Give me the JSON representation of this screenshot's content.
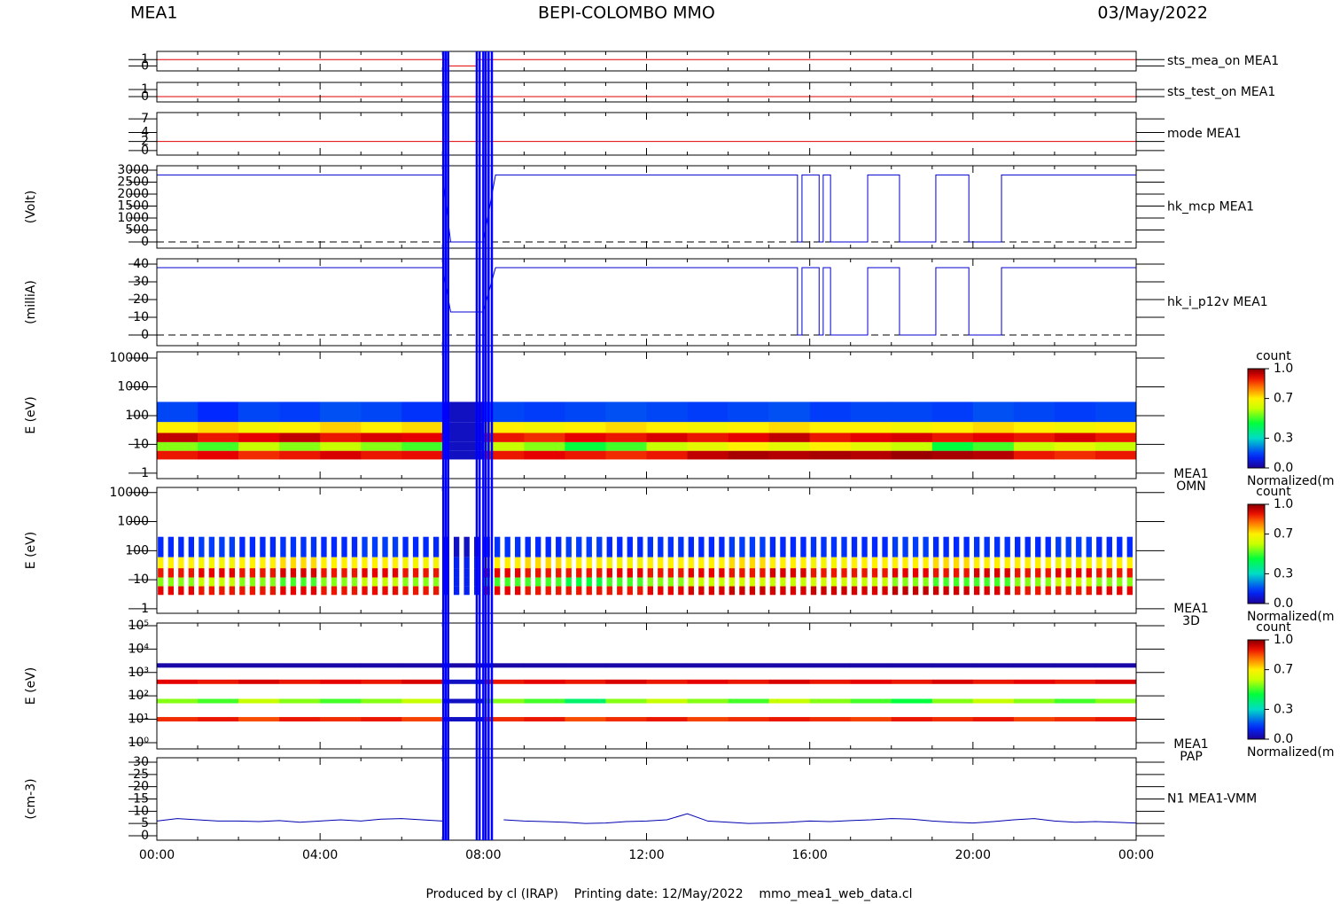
{
  "header": {
    "left": "MEA1",
    "center": "BEPI-COLOMBO MMO",
    "right": "03/May/2022"
  },
  "footer": "Produced by cl (IRAP)    Printing date: 12/May/2022    mmo_mea1_web_data.cl",
  "event_markers": {
    "color": "#0000ff",
    "x": [
      7.02,
      7.08,
      7.14,
      7.84,
      7.91,
      8.0,
      8.06,
      8.13,
      8.21
    ]
  },
  "chart_data": [
    {
      "type": "line",
      "ylim": [
        -0.8,
        2.3
      ],
      "yticks": [
        0,
        1
      ],
      "series": [
        {
          "name": "sts_mea_on MEA1",
          "color": "#e00000",
          "x": [
            0,
            7.14,
            7.14,
            7.84,
            7.84,
            24
          ],
          "values": [
            1,
            1,
            0,
            0,
            1,
            1
          ]
        }
      ]
    },
    {
      "type": "line",
      "ylim": [
        -0.75,
        2.0
      ],
      "yticks": [
        0,
        1
      ],
      "series": [
        {
          "name": "sts_test_on MEA1",
          "color": "#e00000",
          "x": [
            0,
            24
          ],
          "values": [
            0,
            0
          ]
        }
      ]
    },
    {
      "type": "line",
      "ylim": [
        -1,
        8.4
      ],
      "yticks": [
        0,
        2,
        4,
        7
      ],
      "series": [
        {
          "name": "mode MEA1",
          "color": "#e00000",
          "x": [
            0,
            24
          ],
          "values": [
            2,
            2
          ]
        }
      ]
    },
    {
      "type": "line",
      "ylabel": "(Volt)",
      "ylim": [
        -260,
        3185
      ],
      "yticks": [
        0,
        500,
        1000,
        1500,
        2000,
        2500,
        3000
      ],
      "reference_line": 0,
      "series": [
        {
          "name": "hk_mcp MEA1",
          "color": "#0000d0",
          "x": [
            0,
            7.0,
            7.2,
            8.0,
            8.3,
            15.7,
            15.7,
            15.81,
            15.81,
            16.23,
            16.23,
            16.33,
            16.33,
            16.51,
            16.51,
            17.42,
            17.42,
            18.2,
            18.2,
            19.09,
            19.09,
            19.9,
            19.9,
            20.7,
            20.7,
            24
          ],
          "values": [
            2800,
            2800,
            0,
            0,
            2800,
            2800,
            0,
            0,
            2800,
            2800,
            0,
            0,
            2800,
            2800,
            0,
            0,
            2800,
            2800,
            0,
            0,
            2800,
            2800,
            0,
            0,
            2800,
            2800
          ]
        }
      ]
    },
    {
      "type": "line",
      "ylabel": "(milliA)",
      "ylim": [
        -6,
        43
      ],
      "yticks": [
        0,
        10,
        20,
        30,
        40
      ],
      "reference_line": 0,
      "series": [
        {
          "name": "hk_i_p12v MEA1",
          "color": "#0000d0",
          "x": [
            0,
            7.0,
            7.2,
            8.0,
            8.3,
            15.7,
            15.7,
            15.81,
            15.81,
            16.23,
            16.23,
            16.33,
            16.33,
            16.51,
            16.51,
            17.42,
            17.42,
            18.2,
            18.2,
            19.09,
            19.09,
            19.9,
            19.9,
            20.7,
            20.7,
            24
          ],
          "values": [
            38,
            38,
            13,
            13,
            38,
            38,
            0,
            0,
            38,
            38,
            0,
            0,
            38,
            38,
            0,
            0,
            38,
            38,
            0,
            0,
            38,
            38,
            0,
            0,
            38,
            38
          ]
        }
      ]
    },
    {
      "type": "spectrogram",
      "ylabel": "E (eV)",
      "log": true,
      "ylim": [
        0.65,
        16400
      ],
      "yticks": [
        1,
        10,
        100,
        1000,
        10000
      ],
      "instrument": "MEA1",
      "product": "OMN",
      "colormap": "rainbow",
      "bins": [
        0,
        1,
        2,
        3,
        4,
        5,
        6,
        7,
        8,
        9,
        10,
        11,
        12,
        13,
        14,
        15,
        16,
        17,
        18,
        19,
        20,
        21,
        22,
        23,
        24
      ],
      "band_edges": [
        3,
        6,
        12,
        25,
        60,
        300
      ],
      "values": [
        [
          0.9,
          0.92,
          0.88,
          0.9,
          0.93,
          0.9,
          0.91,
          0.05,
          0.9,
          0.92,
          0.9,
          0.88,
          0.9,
          0.95,
          0.97,
          0.96,
          0.97,
          0.96,
          0.98,
          0.97,
          0.96,
          0.9,
          0.88,
          0.9
        ],
        [
          0.55,
          0.5,
          0.6,
          0.55,
          0.6,
          0.55,
          0.5,
          0.05,
          0.6,
          0.55,
          0.45,
          0.5,
          0.6,
          0.65,
          0.7,
          0.65,
          0.7,
          0.65,
          0.6,
          0.45,
          0.5,
          0.6,
          0.65,
          0.6
        ],
        [
          0.95,
          0.9,
          0.92,
          0.95,
          0.9,
          0.93,
          0.92,
          0.05,
          0.9,
          0.88,
          0.92,
          0.9,
          0.93,
          0.9,
          0.92,
          0.95,
          0.9,
          0.92,
          0.93,
          0.9,
          0.92,
          0.9,
          0.93,
          0.9
        ],
        [
          0.7,
          0.72,
          0.68,
          0.7,
          0.73,
          0.7,
          0.72,
          0.05,
          0.7,
          0.68,
          0.7,
          0.72,
          0.7,
          0.68,
          0.7,
          0.72,
          0.7,
          0.7,
          0.68,
          0.7,
          0.72,
          0.7,
          0.68,
          0.7
        ],
        [
          0.15,
          0.12,
          0.15,
          0.14,
          0.16,
          0.15,
          0.13,
          0.05,
          0.15,
          0.14,
          0.15,
          0.16,
          0.15,
          0.14,
          0.15,
          0.16,
          0.14,
          0.15,
          0.15,
          0.14,
          0.16,
          0.15,
          0.14,
          0.15
        ]
      ],
      "colorbar": {
        "title": "count",
        "label": "Normalized(m",
        "lim": [
          0,
          1
        ],
        "ticks": [
          {
            "value": 0,
            "label": "0.0"
          },
          {
            "value": 0.3,
            "label": "0.3"
          },
          {
            "value": 0.7,
            "label": "0.7"
          },
          {
            "value": 1,
            "label": "1.0"
          }
        ]
      }
    },
    {
      "type": "spectrogram",
      "striped": true,
      "ylabel": "E (eV)",
      "log": true,
      "ylim": [
        0.7,
        15000
      ],
      "yticks": [
        1,
        10,
        100,
        1000,
        10000
      ],
      "instrument": "MEA1",
      "product": "3D",
      "colormap": "rainbow",
      "bins": [
        0,
        1,
        2,
        3,
        4,
        5,
        6,
        7,
        8,
        9,
        10,
        11,
        12,
        13,
        14,
        15,
        16,
        17,
        18,
        19,
        20,
        21,
        22,
        23,
        24
      ],
      "band_edges": [
        3,
        6,
        12,
        25,
        60,
        300
      ],
      "values": [
        [
          0.92,
          0.9,
          0.9,
          0.92,
          0.9,
          0.91,
          0.9,
          0.1,
          0.92,
          0.9,
          0.9,
          0.9,
          0.92,
          0.93,
          0.94,
          0.93,
          0.94,
          0.93,
          0.95,
          0.94,
          0.93,
          0.9,
          0.9,
          0.92
        ],
        [
          0.55,
          0.6,
          0.55,
          0.5,
          0.55,
          0.6,
          0.55,
          0.1,
          0.5,
          0.5,
          0.45,
          0.5,
          0.55,
          0.6,
          0.62,
          0.6,
          0.62,
          0.6,
          0.55,
          0.5,
          0.5,
          0.55,
          0.6,
          0.55
        ],
        [
          0.9,
          0.92,
          0.9,
          0.93,
          0.9,
          0.92,
          0.9,
          0.1,
          0.92,
          0.9,
          0.9,
          0.92,
          0.9,
          0.92,
          0.9,
          0.93,
          0.9,
          0.9,
          0.92,
          0.9,
          0.93,
          0.9,
          0.92,
          0.9
        ],
        [
          0.7,
          0.68,
          0.7,
          0.72,
          0.7,
          0.7,
          0.68,
          0.1,
          0.7,
          0.72,
          0.7,
          0.68,
          0.7,
          0.7,
          0.72,
          0.7,
          0.68,
          0.7,
          0.7,
          0.72,
          0.7,
          0.7,
          0.68,
          0.7
        ],
        [
          0.12,
          0.14,
          0.12,
          0.13,
          0.12,
          0.14,
          0.12,
          0.05,
          0.13,
          0.12,
          0.14,
          0.12,
          0.13,
          0.12,
          0.14,
          0.12,
          0.13,
          0.12,
          0.14,
          0.12,
          0.13,
          0.12,
          0.14,
          0.12
        ]
      ],
      "colorbar": {
        "title": "count",
        "label": "Normalized(m",
        "lim": [
          0,
          1
        ],
        "ticks": [
          {
            "value": 0,
            "label": "0.0"
          },
          {
            "value": 0.3,
            "label": "0.3"
          },
          {
            "value": 0.7,
            "label": "0.7"
          },
          {
            "value": 1,
            "label": "1.0"
          }
        ]
      }
    },
    {
      "type": "stripes",
      "ylabel": "E (eV)",
      "log": true,
      "ylim": [
        0.54,
        130000
      ],
      "yticks": [
        {
          "value": 1,
          "label": "10⁰"
        },
        {
          "value": 10,
          "label": "10¹"
        },
        {
          "value": 100,
          "label": "10²"
        },
        {
          "value": 1000,
          "label": "10³"
        },
        {
          "value": 10000,
          "label": "10⁴"
        },
        {
          "value": 100000,
          "label": "10⁵"
        }
      ],
      "instrument": "MEA1",
      "product": "PAP",
      "colormap": "rainbow",
      "bins": [
        0,
        1,
        2,
        3,
        4,
        5,
        6,
        7,
        8,
        9,
        10,
        11,
        12,
        13,
        14,
        15,
        16,
        17,
        18,
        19,
        20,
        21,
        22,
        23,
        24
      ],
      "levels": [
        10,
        60,
        400,
        2000
      ],
      "values": [
        [
          0.88,
          0.9,
          0.85,
          0.9,
          0.88,
          0.9,
          0.86,
          0.05,
          0.88,
          0.9,
          0.85,
          0.88,
          0.9,
          0.86,
          0.88,
          0.9,
          0.88,
          0.86,
          0.9,
          0.88,
          0.9,
          0.86,
          0.88,
          0.9
        ],
        [
          0.55,
          0.5,
          0.6,
          0.55,
          0.5,
          0.55,
          0.6,
          0.05,
          0.55,
          0.5,
          0.4,
          0.55,
          0.6,
          0.55,
          0.5,
          0.6,
          0.55,
          0.5,
          0.45,
          0.55,
          0.6,
          0.55,
          0.5,
          0.55
        ],
        [
          0.92,
          0.9,
          0.93,
          0.9,
          0.92,
          0.9,
          0.93,
          0.05,
          0.9,
          0.92,
          0.9,
          0.93,
          0.9,
          0.92,
          0.9,
          0.93,
          0.9,
          0.92,
          0.9,
          0.93,
          0.9,
          0.92,
          0.9,
          0.93
        ],
        [
          0.02,
          0.02,
          0.02,
          0.02,
          0.02,
          0.02,
          0.02,
          0.02,
          0.02,
          0.02,
          0.02,
          0.02,
          0.02,
          0.02,
          0.02,
          0.02,
          0.02,
          0.02,
          0.02,
          0.02,
          0.02,
          0.02,
          0.02,
          0.02
        ]
      ],
      "colorbar": {
        "title": "count",
        "label": "Normalized(m",
        "lim": [
          0,
          1
        ],
        "ticks": [
          {
            "value": 0,
            "label": "0.0"
          },
          {
            "value": 0.3,
            "label": "0.3"
          },
          {
            "value": 0.7,
            "label": "0.7"
          },
          {
            "value": 1,
            "label": "1.0"
          }
        ]
      }
    },
    {
      "type": "line",
      "ylabel": "(cm-3)",
      "ylim": [
        -1.8,
        31.8
      ],
      "yticks": [
        0,
        5,
        10,
        15,
        20,
        25,
        30
      ],
      "xlim": [
        0,
        24
      ],
      "xticks": [
        {
          "value": 0,
          "label": "00:00"
        },
        {
          "value": 4,
          "label": "04:00"
        },
        {
          "value": 8,
          "label": "08:00"
        },
        {
          "value": 12,
          "label": "12:00"
        },
        {
          "value": 16,
          "label": "16:00"
        },
        {
          "value": 20,
          "label": "20:00"
        },
        {
          "value": 24,
          "label": "00:00"
        }
      ],
      "series": [
        {
          "name": "N1 MEA1-VMM",
          "color": "#0000b0",
          "x": [
            0,
            0.5,
            1,
            1.5,
            2,
            2.5,
            3,
            3.5,
            4,
            4.5,
            5,
            5.5,
            6,
            6.5,
            7,
            7.5,
            8,
            8.5,
            9,
            9.5,
            10,
            10.5,
            11,
            11.5,
            12,
            12.5,
            13,
            13.5,
            14,
            14.5,
            15,
            15.5,
            16,
            16.5,
            17,
            17.5,
            18,
            18.5,
            19,
            19.5,
            20,
            20.5,
            21,
            21.5,
            22,
            22.5,
            23,
            23.5,
            24
          ],
          "values": [
            6,
            7,
            6.5,
            6,
            6,
            5.8,
            6.2,
            5.5,
            6,
            6.5,
            6,
            6.8,
            7,
            6.5,
            6,
            null,
            null,
            6.5,
            6,
            5.8,
            5.5,
            5,
            5.2,
            5.8,
            6,
            6.5,
            9,
            6,
            5.5,
            5,
            5.2,
            5.5,
            6,
            5.8,
            6.2,
            6.5,
            7,
            6.8,
            6,
            5.5,
            5.2,
            5.8,
            6.5,
            7,
            6,
            5.5,
            5.8,
            5.5,
            5.2
          ]
        }
      ]
    }
  ]
}
